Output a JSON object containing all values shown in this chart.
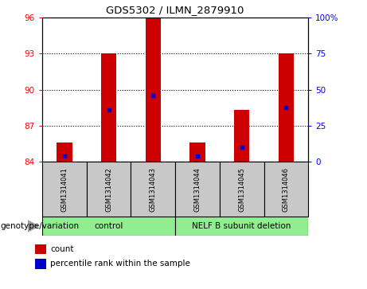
{
  "title": "GDS5302 / ILMN_2879910",
  "samples": [
    "GSM1314041",
    "GSM1314042",
    "GSM1314043",
    "GSM1314044",
    "GSM1314045",
    "GSM1314046"
  ],
  "bar_values": [
    85.6,
    93.0,
    96.0,
    85.6,
    88.3,
    93.0
  ],
  "bar_bottom": 84.0,
  "percentile_values": [
    84.5,
    88.3,
    89.5,
    84.5,
    85.2,
    88.5
  ],
  "ylim_left": [
    84,
    96
  ],
  "yticks_left": [
    84,
    87,
    90,
    93,
    96
  ],
  "yticks_right": [
    0,
    25,
    50,
    75,
    100
  ],
  "ytick_right_labels": [
    "0",
    "25",
    "50",
    "75",
    "100%"
  ],
  "grid_lines": [
    87,
    90,
    93
  ],
  "bar_color": "#cc0000",
  "percentile_color": "#0000cc",
  "bg_color": "#c8c8c8",
  "plot_bg": "#ffffff",
  "legend_red_label": "count",
  "legend_blue_label": "percentile rank within the sample",
  "group_row_label": "genotype/variation",
  "control_label": "control",
  "nelf_label": "NELF B subunit deletion",
  "group_bg": "#90ee90",
  "bar_width": 0.35,
  "n_samples": 6
}
